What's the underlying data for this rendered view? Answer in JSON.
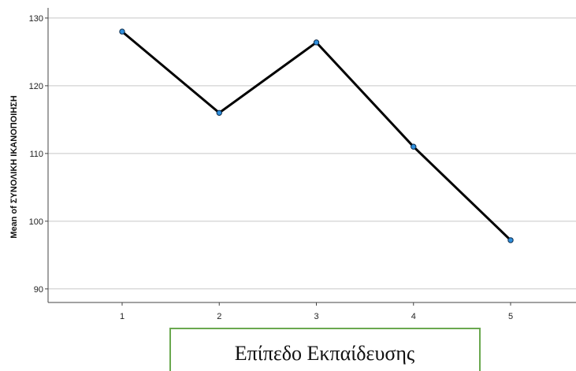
{
  "chart_data": {
    "type": "line",
    "title": "",
    "xlabel": "Επίπεδο Εκπαίδευσης",
    "ylabel": "Mean of ΣΥΝΟΛΙΚΗ ΙΚΑΝΟΠΟΙΗΣΗ",
    "categories": [
      "1",
      "2",
      "3",
      "4",
      "5"
    ],
    "series": [
      {
        "values": [
          128.0,
          116.0,
          126.4,
          111.0,
          97.2
        ]
      }
    ],
    "y_ticks": [
      "90",
      "100",
      "110",
      "120",
      "130"
    ],
    "ylim": [
      88.0,
      131.5
    ],
    "grid": true,
    "legend": "none",
    "colors": {
      "line": "#000000",
      "marker_fill": "#2f8fdd",
      "marker_stroke": "#0b2a4a",
      "grid": "#c8c8c8",
      "axis": "#444444",
      "label_box_border": "#6aa84f"
    }
  }
}
